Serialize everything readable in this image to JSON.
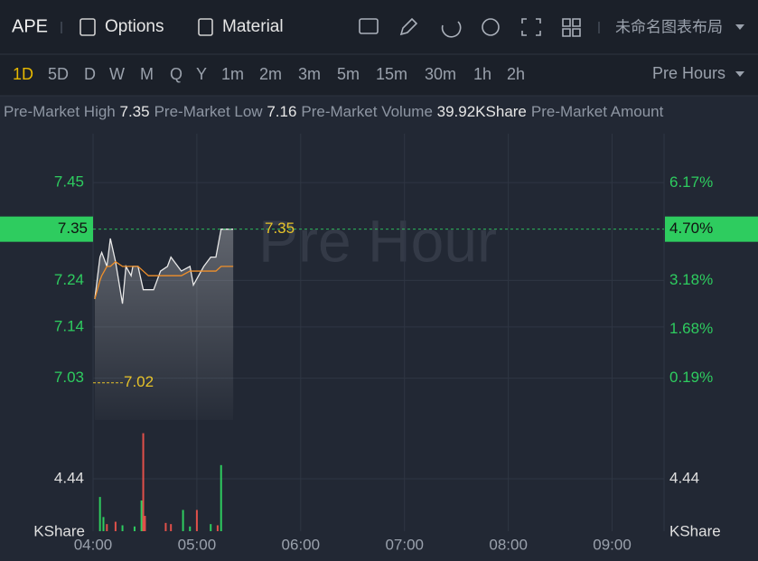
{
  "toolbar": {
    "symbol": "APE",
    "options": "Options",
    "material": "Material",
    "layout": "未命名图表布局"
  },
  "periods": {
    "items": [
      "1D",
      "5D",
      "D",
      "W",
      "M",
      "Q",
      "Y",
      "1m",
      "2m",
      "3m",
      "5m",
      "15m",
      "30m",
      "1h",
      "2h"
    ],
    "active": "1D",
    "session": "Pre Hours"
  },
  "stats": [
    {
      "label": "Pre-Market High",
      "value": 7.35
    },
    {
      "label": "Pre-Market Low",
      "value": 7.16
    },
    {
      "label": "Pre-Market Volume",
      "value": "39.92KShare"
    },
    {
      "label": "Pre-Market Amount"
    }
  ],
  "chart_data": {
    "type": "line",
    "watermark": "Pre Hour",
    "x": [
      "04:01",
      "04:04",
      "04:05",
      "04:08",
      "04:10",
      "04:13",
      "04:17",
      "04:19",
      "04:22",
      "04:23",
      "04:26",
      "04:29",
      "04:32",
      "04:35",
      "04:39",
      "04:43",
      "04:45",
      "04:51",
      "04:56",
      "04:58",
      "05:04",
      "05:08",
      "05:11",
      "05:14",
      "05:17",
      "05:21"
    ],
    "series": [
      {
        "name": "Price",
        "color": "#e8e8e8",
        "values": [
          7.2,
          7.29,
          7.3,
          7.27,
          7.33,
          7.28,
          7.19,
          7.27,
          7.25,
          7.27,
          7.27,
          7.22,
          7.22,
          7.22,
          7.26,
          7.27,
          7.29,
          7.26,
          7.27,
          7.23,
          7.27,
          7.29,
          7.29,
          7.35,
          7.35,
          7.35
        ]
      },
      {
        "name": "Average",
        "color": "#f0902a",
        "values": [
          7.2,
          7.24,
          7.25,
          7.27,
          7.27,
          7.28,
          7.27,
          7.27,
          7.27,
          7.27,
          7.27,
          7.26,
          7.25,
          7.25,
          7.25,
          7.25,
          7.25,
          7.25,
          7.26,
          7.26,
          7.26,
          7.26,
          7.26,
          7.27,
          7.27,
          7.27
        ]
      }
    ],
    "xlim": [
      "04:00",
      "09:30"
    ],
    "xticks": [
      "04:00",
      "05:00",
      "06:00",
      "07:00",
      "08:00",
      "09:00"
    ],
    "ylim": [
      6.94,
      7.555
    ],
    "yticks": [
      7.45,
      7.24,
      7.14,
      7.03
    ],
    "y2lim": [
      -1.09,
      7.67
    ],
    "y2ticks": [
      {
        "value": 6.17,
        "label": "6.17%"
      },
      {
        "value": 3.18,
        "label": "3.18%"
      },
      {
        "value": 1.68,
        "label": "1.68%"
      },
      {
        "value": 0.19,
        "label": "0.19%"
      }
    ],
    "last_price": 7.35,
    "last_change": {
      "value": 4.7,
      "label": "4.70%"
    },
    "last_color": "#2ecc5f",
    "high_label": 7.35,
    "base_price": 7.02,
    "label_color": "#e6c229",
    "volume": {
      "unit": "KShare",
      "ylim": [
        0,
        9.03
      ],
      "yticks": [
        4.44
      ],
      "x": [
        "04:04",
        "04:06",
        "04:08",
        "04:13",
        "04:17",
        "04:24",
        "04:28",
        "04:29",
        "04:30",
        "04:42",
        "04:45",
        "04:52",
        "04:56",
        "05:00",
        "05:08",
        "05:12",
        "05:14"
      ],
      "values": [
        2.9,
        1.2,
        0.6,
        0.8,
        0.5,
        0.4,
        2.6,
        8.3,
        1.3,
        0.7,
        0.6,
        1.8,
        0.4,
        1.8,
        0.6,
        0.5,
        5.6
      ],
      "colors": [
        "#2ecc5f",
        "#2ecc5f",
        "#e0504a",
        "#e0504a",
        "#2ecc5f",
        "#2ecc5f",
        "#2ecc5f",
        "#e0504a",
        "#e0504a",
        "#e0504a",
        "#e0504a",
        "#2ecc5f",
        "#2ecc5f",
        "#e0504a",
        "#2ecc5f",
        "#e0504a",
        "#2ecc5f"
      ]
    },
    "grid": true
  }
}
